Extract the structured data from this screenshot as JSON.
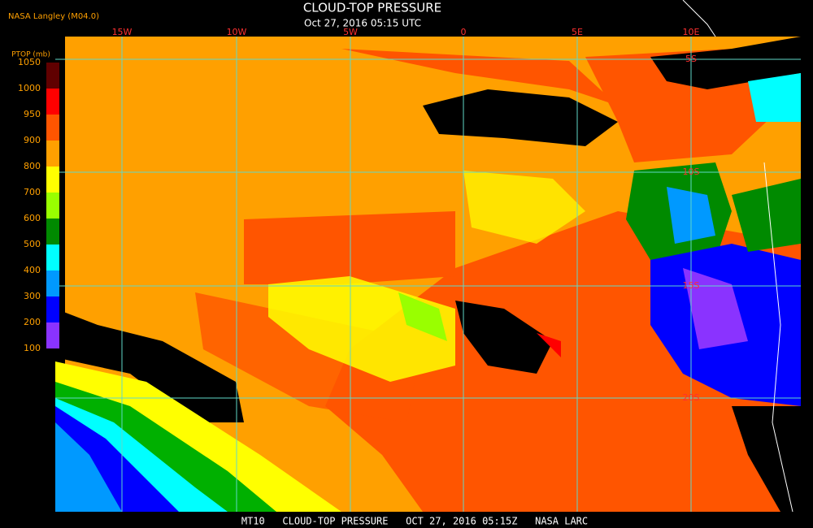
{
  "header": {
    "source": "NASA Langley (M04.0)",
    "title": "CLOUD-TOP PRESSURE",
    "timestamp": "Oct 27, 2016 05:15 UTC"
  },
  "legend": {
    "title": "PTOP (mb)",
    "labels": [
      1050,
      1000,
      950,
      900,
      800,
      700,
      600,
      500,
      400,
      300,
      200,
      100
    ],
    "colors": [
      "#600000",
      "#ff0000",
      "#ff5500",
      "#ffa000",
      "#ffff00",
      "#99ff00",
      "#008a00",
      "#00ffff",
      "#0099ff",
      "#0000ff",
      "#8a33ff"
    ]
  },
  "map": {
    "longitude_labels": [
      "15W",
      "10W",
      "5W",
      "0",
      "5E",
      "10E"
    ],
    "latitude_labels": [
      "5S",
      "10S",
      "15S",
      "20S"
    ]
  },
  "footer": {
    "caption": "MT10   CLOUD-TOP PRESSURE   OCT 27, 2016 05:15Z   NASA LARC"
  }
}
